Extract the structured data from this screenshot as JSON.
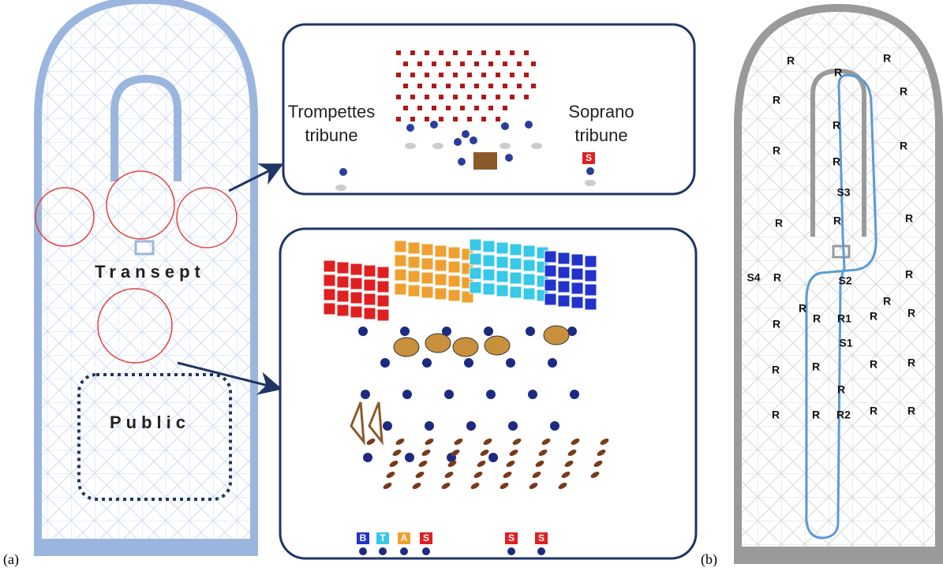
{
  "panel_a": {
    "label": "(a)",
    "zones": [
      "Transept",
      "Public"
    ],
    "left_callout": [
      "Trompettes",
      "tribune"
    ],
    "right_callout": [
      "Soprano",
      "tribune"
    ],
    "soprano_marker": "S",
    "section_markers": [
      "B",
      "T",
      "A",
      "S",
      "S",
      "S"
    ]
  },
  "panel_b": {
    "label": "(b)",
    "markers": [
      "R",
      "R",
      "R",
      "R",
      "R",
      "R",
      "R",
      "R",
      "R",
      "S3",
      "R",
      "R",
      "R",
      "S4",
      "R",
      "S2",
      "R",
      "R",
      "R",
      "R",
      "R",
      "R1",
      "R",
      "R",
      "S1",
      "R",
      "R",
      "R",
      "R",
      "R",
      "R",
      "R",
      "R2",
      "R",
      "R"
    ]
  }
}
